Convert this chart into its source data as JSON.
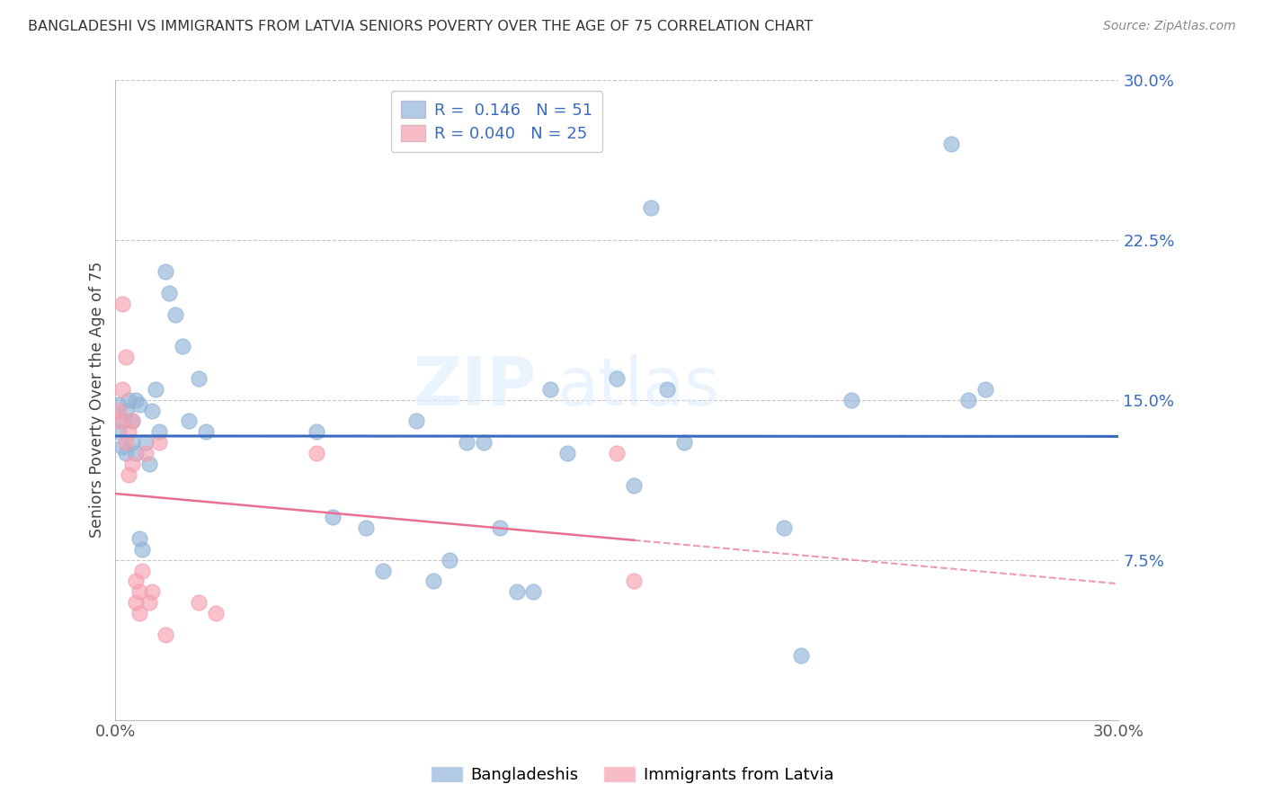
{
  "title": "BANGLADESHI VS IMMIGRANTS FROM LATVIA SENIORS POVERTY OVER THE AGE OF 75 CORRELATION CHART",
  "source": "Source: ZipAtlas.com",
  "ylabel": "Seniors Poverty Over the Age of 75",
  "xlim": [
    0.0,
    0.3
  ],
  "ylim": [
    0.0,
    0.3
  ],
  "xticks": [
    0.0,
    0.05,
    0.1,
    0.15,
    0.2,
    0.25,
    0.3
  ],
  "yticks": [
    0.0,
    0.075,
    0.15,
    0.225,
    0.3
  ],
  "ytick_labels": [
    "",
    "7.5%",
    "15.0%",
    "22.5%",
    "30.0%"
  ],
  "xtick_labels": [
    "0.0%",
    "",
    "",
    "",
    "",
    "",
    "30.0%"
  ],
  "grid_yticks": [
    0.075,
    0.15,
    0.225,
    0.3
  ],
  "blue_R": 0.146,
  "blue_N": 51,
  "pink_R": 0.04,
  "pink_N": 25,
  "legend_labels": [
    "Bangladeshis",
    "Immigrants from Latvia"
  ],
  "blue_color": "#92B4D8",
  "pink_color": "#F5A0B0",
  "line_blue": "#3A6BBF",
  "line_pink": "#E87090",
  "watermark_zip": "ZIP",
  "watermark_atlas": "atlas",
  "blue_x": [
    0.001,
    0.001,
    0.002,
    0.002,
    0.003,
    0.003,
    0.004,
    0.005,
    0.005,
    0.006,
    0.006,
    0.007,
    0.007,
    0.008,
    0.009,
    0.01,
    0.011,
    0.012,
    0.013,
    0.015,
    0.016,
    0.018,
    0.02,
    0.022,
    0.025,
    0.027,
    0.06,
    0.065,
    0.075,
    0.08,
    0.09,
    0.095,
    0.1,
    0.105,
    0.11,
    0.115,
    0.12,
    0.125,
    0.13,
    0.135,
    0.15,
    0.155,
    0.16,
    0.165,
    0.17,
    0.2,
    0.205,
    0.22,
    0.25,
    0.255,
    0.26
  ],
  "blue_y": [
    0.135,
    0.148,
    0.14,
    0.128,
    0.145,
    0.125,
    0.15,
    0.14,
    0.13,
    0.15,
    0.125,
    0.148,
    0.085,
    0.08,
    0.13,
    0.12,
    0.145,
    0.155,
    0.135,
    0.21,
    0.2,
    0.19,
    0.175,
    0.14,
    0.16,
    0.135,
    0.135,
    0.095,
    0.09,
    0.07,
    0.14,
    0.065,
    0.075,
    0.13,
    0.13,
    0.09,
    0.06,
    0.06,
    0.155,
    0.125,
    0.16,
    0.11,
    0.24,
    0.155,
    0.13,
    0.09,
    0.03,
    0.15,
    0.27,
    0.15,
    0.155
  ],
  "pink_x": [
    0.001,
    0.001,
    0.002,
    0.002,
    0.003,
    0.003,
    0.004,
    0.004,
    0.005,
    0.005,
    0.006,
    0.006,
    0.007,
    0.007,
    0.008,
    0.009,
    0.01,
    0.011,
    0.013,
    0.015,
    0.06,
    0.15,
    0.155,
    0.025,
    0.03
  ],
  "pink_y": [
    0.145,
    0.14,
    0.195,
    0.155,
    0.17,
    0.13,
    0.135,
    0.115,
    0.14,
    0.12,
    0.065,
    0.055,
    0.06,
    0.05,
    0.07,
    0.125,
    0.055,
    0.06,
    0.13,
    0.04,
    0.125,
    0.125,
    0.065,
    0.055,
    0.05
  ]
}
